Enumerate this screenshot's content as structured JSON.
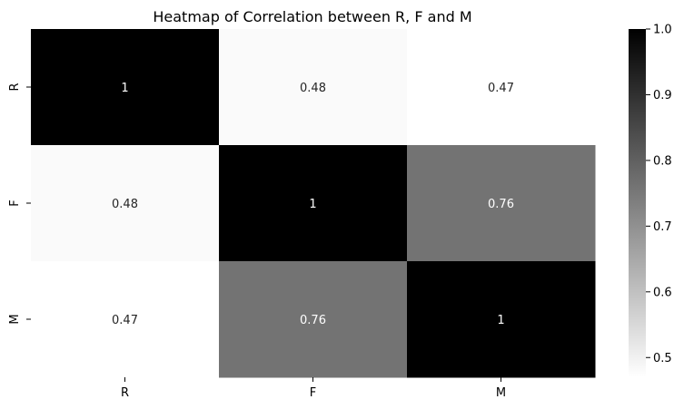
{
  "chart_data": {
    "type": "heatmap",
    "title": "Heatmap of Correlation between R, F and M",
    "xlabel": "",
    "ylabel": "",
    "x_categories": [
      "R",
      "F",
      "M"
    ],
    "y_categories": [
      "R",
      "F",
      "M"
    ],
    "values": [
      [
        1,
        0.48,
        0.47
      ],
      [
        0.48,
        1,
        0.76
      ],
      [
        0.47,
        0.76,
        1
      ]
    ],
    "annotations": [
      [
        "1",
        "0.48",
        "0.47"
      ],
      [
        "0.48",
        "1",
        "0.76"
      ],
      [
        "0.47",
        "0.76",
        "1"
      ]
    ],
    "colormap": "Greys",
    "color_low": "#ffffff",
    "color_high": "#000000",
    "colorbar": {
      "range": [
        0.47,
        1.0
      ],
      "ticks": [
        0.5,
        0.6,
        0.7,
        0.8,
        0.9,
        1.0
      ],
      "tick_labels": [
        "0.5",
        "0.6",
        "0.7",
        "0.8",
        "0.9",
        "1.0"
      ]
    },
    "grid": false
  }
}
